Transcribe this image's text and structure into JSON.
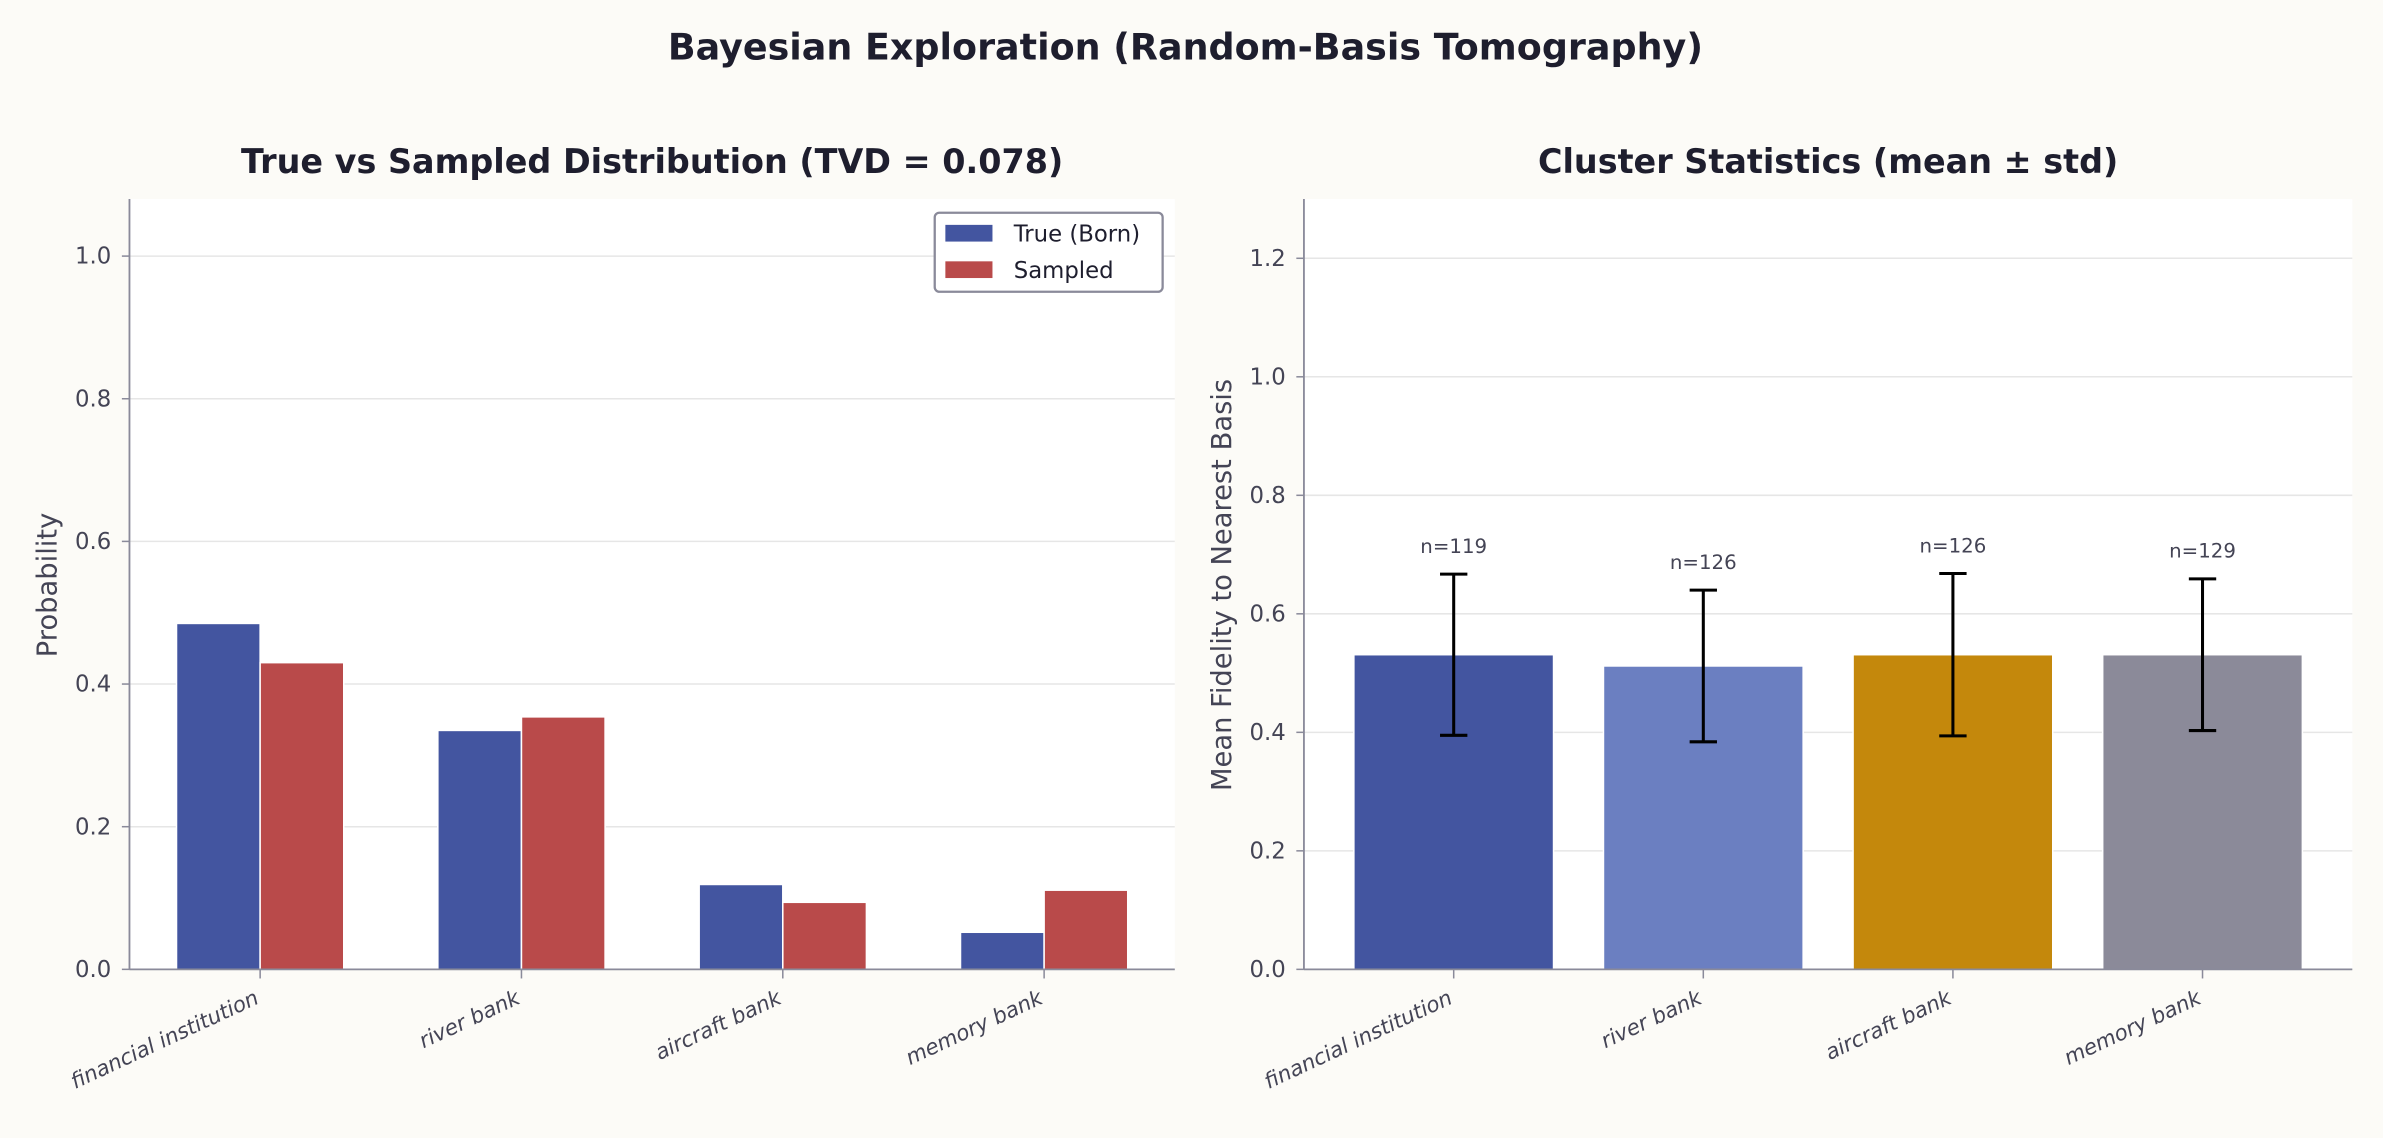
{
  "suptitle": "Bayesian Exploration (Random-Basis Tomography)",
  "colors": {
    "background": "#fcfbf7",
    "true_born": "#4355a0",
    "sampled": "#b94a4a",
    "cluster_bars": [
      "#4355a0",
      "#6b7fc1",
      "#c4880c",
      "#8b8a99"
    ],
    "error_bars": "#000000"
  },
  "chart_data": [
    {
      "type": "bar",
      "title": "True vs Sampled Distribution (TVD = 0.078)",
      "xlabel": "",
      "ylabel": "Probability",
      "categories": [
        "financial institution",
        "river bank",
        "aircraft bank",
        "memory bank"
      ],
      "series": [
        {
          "name": "True (Born)",
          "values": [
            0.485,
            0.335,
            0.119,
            0.052
          ]
        },
        {
          "name": "Sampled",
          "values": [
            0.43,
            0.354,
            0.094,
            0.111
          ]
        }
      ],
      "ylim": [
        0,
        1.08
      ],
      "yticks": [
        "0.0",
        "0.2",
        "0.4",
        "0.6",
        "0.8",
        "1.0"
      ],
      "grid": "y",
      "legend": "top-right"
    },
    {
      "type": "bar",
      "title": "Cluster Statistics (mean ± std)",
      "xlabel": "",
      "ylabel": "Mean Fidelity to Nearest Basis",
      "categories": [
        "financial institution",
        "river bank",
        "aircraft bank",
        "memory bank"
      ],
      "values": [
        0.531,
        0.512,
        0.531,
        0.531
      ],
      "errors": [
        0.136,
        0.128,
        0.137,
        0.128
      ],
      "annotations": [
        "n=119",
        "n=126",
        "n=126",
        "n=129"
      ],
      "ylim": [
        0,
        1.3
      ],
      "yticks": [
        "0.0",
        "0.2",
        "0.4",
        "0.6",
        "0.8",
        "1.0",
        "1.2"
      ],
      "grid": "y"
    }
  ]
}
